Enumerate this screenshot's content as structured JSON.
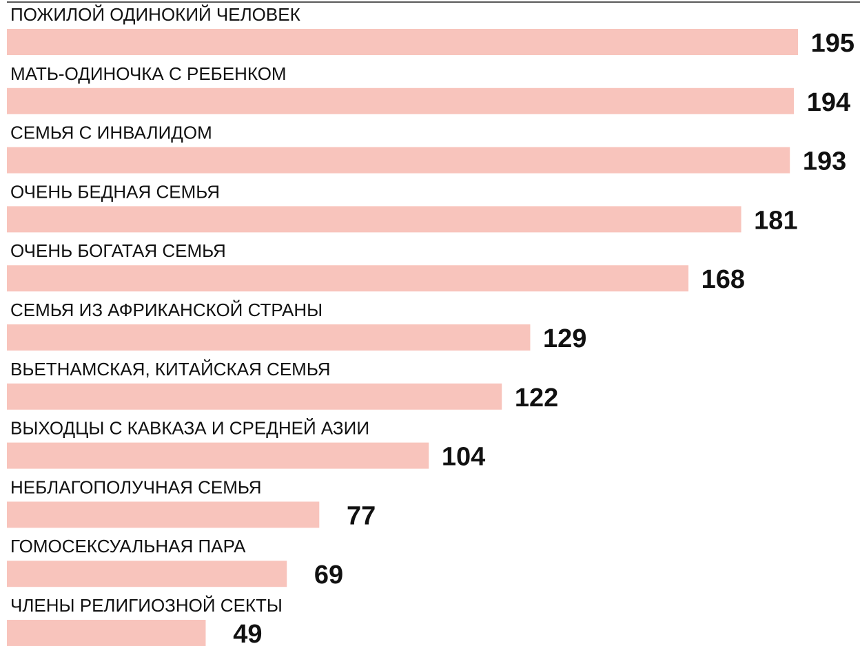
{
  "chart_data": {
    "type": "bar",
    "orientation": "horizontal",
    "categories": [
      "ПОЖИЛОЙ ОДИНОКИЙ ЧЕЛОВЕК",
      "МАТЬ-ОДИНОЧКА С РЕБЕНКОМ",
      "СЕМЬЯ С ИНВАЛИДОМ",
      "ОЧЕНЬ БЕДНАЯ СЕМЬЯ",
      "ОЧЕНЬ БОГАТАЯ СЕМЬЯ",
      "СЕМЬЯ ИЗ АФРИКАНСКОЙ СТРАНЫ",
      "ВЬЕТНАМСКАЯ, КИТАЙСКАЯ СЕМЬЯ",
      "ВЫХОДЦЫ С КАВКАЗА И СРЕДНЕЙ АЗИИ",
      "НЕБЛАГОПОЛУЧНАЯ СЕМЬЯ",
      "ГОМОСЕКСУАЛЬНАЯ ПАРА",
      "ЧЛЕНЫ РЕЛИГИОЗНОЙ СЕКТЫ"
    ],
    "values": [
      195,
      194,
      193,
      181,
      168,
      129,
      122,
      104,
      77,
      69,
      49
    ],
    "color": "#f8c4bc"
  }
}
